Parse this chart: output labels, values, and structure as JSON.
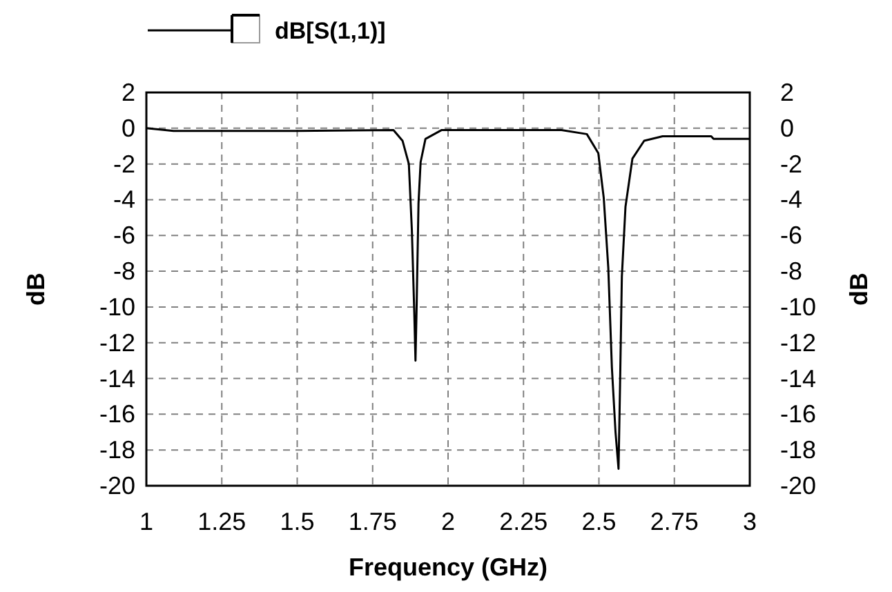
{
  "chart_data": {
    "type": "line",
    "xlabel": "Frequency (GHz)",
    "ylabel": "dB",
    "y2label": "dB",
    "xlim": [
      1,
      3
    ],
    "xticks": [
      1,
      1.25,
      1.5,
      1.75,
      2,
      2.25,
      2.5,
      2.75,
      3
    ],
    "ylim": [
      -20,
      2
    ],
    "yticks": [
      2,
      0,
      -2,
      -4,
      -6,
      -8,
      -10,
      -12,
      -14,
      -16,
      -18,
      -20
    ],
    "y2lim": [
      -20,
      2
    ],
    "y2ticks": [
      2,
      0,
      -2,
      -4,
      -6,
      -8,
      -10,
      -12,
      -14,
      -16,
      -18,
      -20
    ],
    "grid": true,
    "legend": "top",
    "line_style": "solid",
    "series": [
      {
        "name": "dB[S(1,1)]",
        "color": "#000000",
        "x": [
          1,
          1.09,
          1.5,
          1.819,
          1.849,
          1.87,
          1.88,
          1.888,
          1.892,
          1.896,
          1.902,
          1.909,
          1.925,
          1.979,
          2.376,
          2.46,
          2.498,
          2.516,
          2.531,
          2.543,
          2.555,
          2.565,
          2.57,
          2.576,
          2.588,
          2.611,
          2.65,
          2.711,
          2.872,
          2.88,
          3
        ],
        "values": [
          0,
          -0.15,
          -0.15,
          -0.1,
          -0.7,
          -2,
          -5.7,
          -10.3,
          -13,
          -9.8,
          -4.2,
          -1.9,
          -0.6,
          -0.1,
          -0.1,
          -0.33,
          -1.4,
          -3.9,
          -7.8,
          -13.4,
          -17,
          -19.05,
          -14.4,
          -8.3,
          -4.4,
          -1.7,
          -0.7,
          -0.45,
          -0.45,
          -0.6,
          -0.6
        ]
      }
    ]
  }
}
